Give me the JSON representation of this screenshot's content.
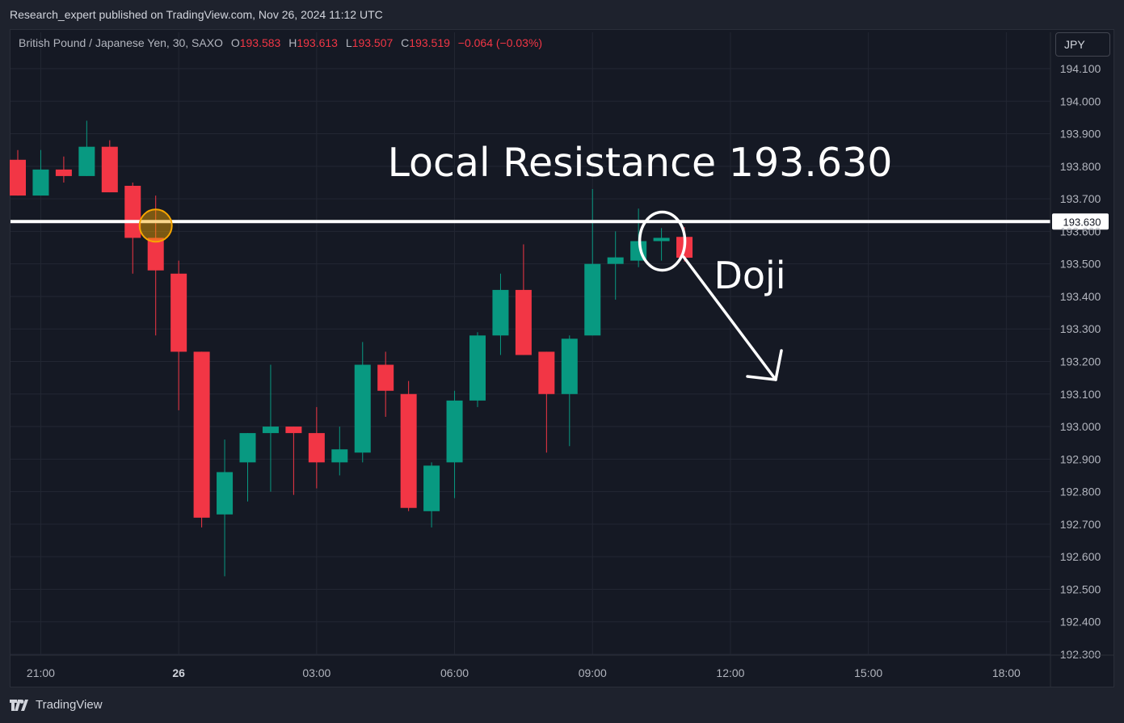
{
  "publish_line": "Research_expert published on TradingView.com, Nov 26, 2024 11:12 UTC",
  "legend": {
    "symbol": "British Pound / Japanese Yen, 30, SAXO",
    "open_label": "O",
    "open": "193.583",
    "high_label": "H",
    "high": "193.613",
    "low_label": "L",
    "low": "193.507",
    "close_label": "C",
    "close": "193.519",
    "change": "−0.064 (−0.03%)"
  },
  "currency_button": "JPY",
  "brand": "TradingView",
  "colors": {
    "up": "#089981",
    "down": "#f23645",
    "background": "#151924",
    "grid": "#232733",
    "axis_text": "#b2b5be",
    "annotation": "#ffffff",
    "highlight_circle": "#f7a600"
  },
  "chart_data": {
    "type": "candlestick",
    "ylim": [
      192.28,
      194.14
    ],
    "y_ticks": [
      "194.100",
      "194.000",
      "193.900",
      "193.800",
      "193.700",
      "193.600",
      "193.500",
      "193.400",
      "193.300",
      "193.200",
      "193.100",
      "193.000",
      "192.900",
      "192.800",
      "192.700",
      "192.600",
      "192.500",
      "192.400",
      "192.300"
    ],
    "x_ticks": [
      {
        "label": "21:00",
        "bold": false,
        "slot": 1
      },
      {
        "label": "26",
        "bold": true,
        "slot": 7
      },
      {
        "label": "03:00",
        "bold": false,
        "slot": 13
      },
      {
        "label": "06:00",
        "bold": false,
        "slot": 19
      },
      {
        "label": "09:00",
        "bold": false,
        "slot": 25
      },
      {
        "label": "12:00",
        "bold": false,
        "slot": 31
      },
      {
        "label": "15:00",
        "bold": false,
        "slot": 37
      },
      {
        "label": "18:00",
        "bold": false,
        "slot": 43
      }
    ],
    "candles": [
      {
        "o": 193.82,
        "h": 193.85,
        "l": 193.71,
        "c": 193.71
      },
      {
        "o": 193.71,
        "h": 193.85,
        "l": 193.71,
        "c": 193.79
      },
      {
        "o": 193.79,
        "h": 193.83,
        "l": 193.75,
        "c": 193.77
      },
      {
        "o": 193.77,
        "h": 193.94,
        "l": 193.77,
        "c": 193.86
      },
      {
        "o": 193.86,
        "h": 193.88,
        "l": 193.72,
        "c": 193.72
      },
      {
        "o": 193.74,
        "h": 193.75,
        "l": 193.47,
        "c": 193.58
      },
      {
        "o": 193.58,
        "h": 193.71,
        "l": 193.28,
        "c": 193.48
      },
      {
        "o": 193.47,
        "h": 193.51,
        "l": 193.05,
        "c": 193.23
      },
      {
        "o": 193.23,
        "h": 193.23,
        "l": 192.69,
        "c": 192.72
      },
      {
        "o": 192.73,
        "h": 192.96,
        "l": 192.54,
        "c": 192.86
      },
      {
        "o": 192.89,
        "h": 192.98,
        "l": 192.77,
        "c": 192.98
      },
      {
        "o": 192.98,
        "h": 193.19,
        "l": 192.8,
        "c": 193.0
      },
      {
        "o": 193.0,
        "h": 193.0,
        "l": 192.79,
        "c": 192.98
      },
      {
        "o": 192.98,
        "h": 193.06,
        "l": 192.81,
        "c": 192.89
      },
      {
        "o": 192.89,
        "h": 193.0,
        "l": 192.85,
        "c": 192.93
      },
      {
        "o": 192.92,
        "h": 193.26,
        "l": 192.89,
        "c": 193.19
      },
      {
        "o": 193.19,
        "h": 193.23,
        "l": 193.03,
        "c": 193.11
      },
      {
        "o": 193.1,
        "h": 193.14,
        "l": 192.74,
        "c": 192.75
      },
      {
        "o": 192.74,
        "h": 192.89,
        "l": 192.69,
        "c": 192.88
      },
      {
        "o": 192.89,
        "h": 193.11,
        "l": 192.78,
        "c": 193.08
      },
      {
        "o": 193.08,
        "h": 193.29,
        "l": 193.06,
        "c": 193.28
      },
      {
        "o": 193.28,
        "h": 193.47,
        "l": 193.22,
        "c": 193.42
      },
      {
        "o": 193.42,
        "h": 193.56,
        "l": 193.22,
        "c": 193.22
      },
      {
        "o": 193.23,
        "h": 193.23,
        "l": 192.92,
        "c": 193.1
      },
      {
        "o": 193.1,
        "h": 193.28,
        "l": 192.94,
        "c": 193.27
      },
      {
        "o": 193.28,
        "h": 193.73,
        "l": 193.28,
        "c": 193.5
      },
      {
        "o": 193.5,
        "h": 193.6,
        "l": 193.39,
        "c": 193.52
      },
      {
        "o": 193.51,
        "h": 193.67,
        "l": 193.49,
        "c": 193.57
      },
      {
        "o": 193.57,
        "h": 193.61,
        "l": 193.51,
        "c": 193.58
      },
      {
        "o": 193.583,
        "h": 193.613,
        "l": 193.507,
        "c": 193.519
      }
    ],
    "resistance_level": 193.63,
    "resistance_label": "193.630",
    "annotations": {
      "title": "Local Resistance 193.630",
      "doji_label": "Doji"
    }
  }
}
